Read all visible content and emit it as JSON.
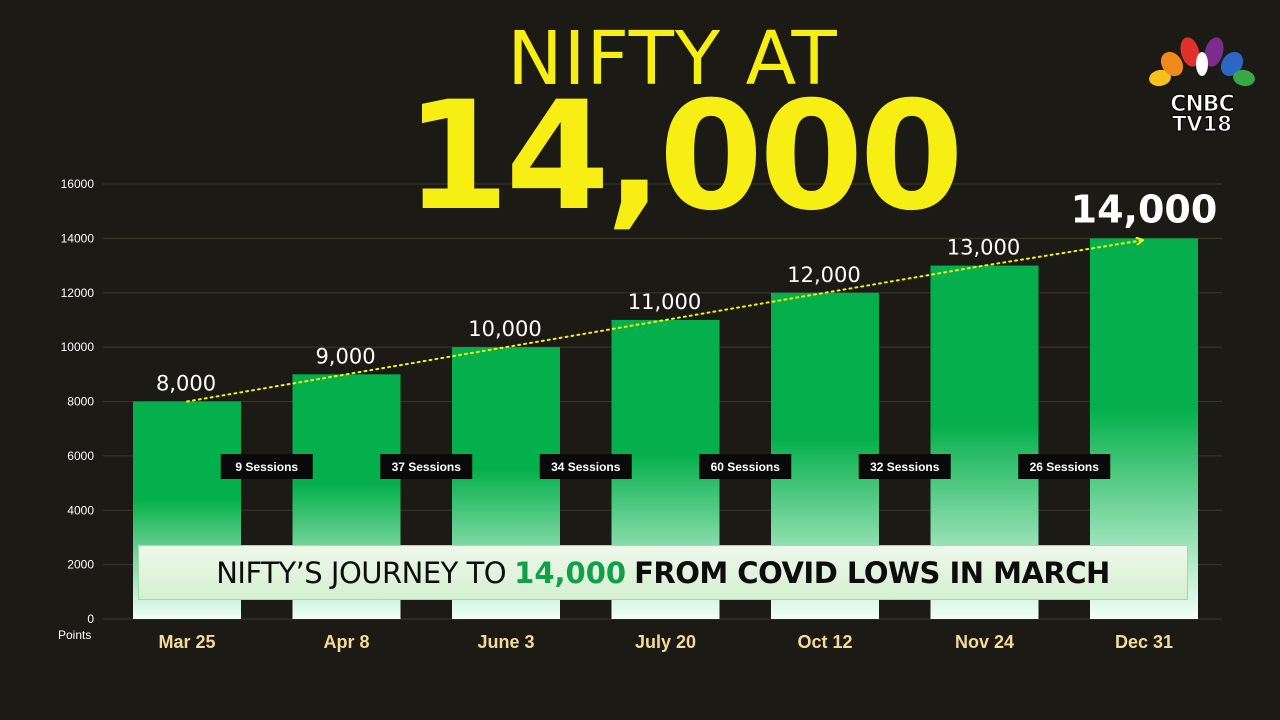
{
  "title": {
    "line1": "NIFTY AT",
    "line2": "14,000"
  },
  "logo": {
    "line1": "CNBC",
    "line2": "TV18"
  },
  "caption": {
    "part1": "NIFTY’S JOURNEY TO",
    "part2": "14,000",
    "part3": "FROM COVID LOWS IN MARCH"
  },
  "colors": {
    "background": "#1c1a14",
    "title": "#f7ee14",
    "bar_top": "#05b04c",
    "bar_bottom": "#f2fff6",
    "date_labels": "#f3dc9a",
    "trend_line": "#f7ee14"
  },
  "chart_data": {
    "type": "bar",
    "categories": [
      "Mar 25",
      "Apr 8",
      "June 3",
      "July 20",
      "Oct 12",
      "Nov 24",
      "Dec 31"
    ],
    "values": [
      8000,
      9000,
      10000,
      11000,
      12000,
      13000,
      14000
    ],
    "data_labels": [
      "8,000",
      "9,000",
      "10,000",
      "11,000",
      "12,000",
      "13,000",
      "14,000"
    ],
    "sessions": [
      "9 Sessions",
      "37 Sessions",
      "34 Sessions",
      "60 Sessions",
      "32 Sessions",
      "26 Sessions"
    ],
    "yticks": [
      0,
      2000,
      4000,
      6000,
      8000,
      10000,
      12000,
      14000,
      16000
    ],
    "ylim": [
      0,
      16000
    ],
    "ylabel": "Points",
    "grid": true,
    "trend_arrow": true
  }
}
